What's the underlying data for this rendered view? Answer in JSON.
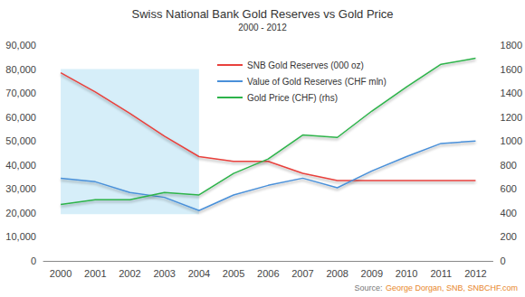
{
  "chart_data": {
    "type": "line",
    "title": "Swiss National Bank Gold Reserves vs Gold Price",
    "subtitle": "2000 - 2012",
    "categories": [
      "2000",
      "2001",
      "2002",
      "2003",
      "2004",
      "2005",
      "2006",
      "2007",
      "2008",
      "2009",
      "2010",
      "2011",
      "2012"
    ],
    "series": [
      {
        "name": "SNB Gold Reserves (000 oz)",
        "color": "#e8413c",
        "axis": "y",
        "values": [
          78500,
          70500,
          61500,
          52000,
          43500,
          41500,
          41500,
          36500,
          33500,
          33500,
          33500,
          33500,
          33500
        ]
      },
      {
        "name": "Value of Gold Reserves (CHF mln)",
        "color": "#4a90d9",
        "axis": "y",
        "values": [
          34500,
          33000,
          28500,
          26500,
          21000,
          27500,
          31500,
          34500,
          30500,
          37500,
          43500,
          49000,
          50000
        ]
      },
      {
        "name": "Gold Price (CHF) (rhs)",
        "color": "#2db34a",
        "axis": "y2",
        "values": [
          470,
          510,
          510,
          570,
          550,
          730,
          850,
          1050,
          1030,
          1250,
          1450,
          1640,
          1690
        ]
      }
    ],
    "ylim": [
      0,
      90000
    ],
    "yticks": [
      0,
      {
        "value": 10000,
        "label": "10,000"
      },
      {
        "value": 20000,
        "label": "20,000"
      },
      {
        "value": 30000,
        "label": "30,000"
      },
      {
        "value": 40000,
        "label": "40,000"
      },
      {
        "value": 50000,
        "label": "50,000"
      },
      {
        "value": 60000,
        "label": "60,000"
      },
      {
        "value": 70000,
        "label": "70,000"
      },
      {
        "value": 80000,
        "label": "80,000"
      },
      {
        "value": 90000,
        "label": "90,000"
      }
    ],
    "y2lim": [
      0,
      1800
    ],
    "y2ticks": [
      0,
      200,
      400,
      600,
      800,
      1000,
      1200,
      1400,
      1600,
      1800
    ],
    "shaded_region": {
      "from": "2000",
      "to": "2004",
      "ylim": [
        19500,
        80000
      ],
      "color": "#d6eef9"
    },
    "source_label": "Source:",
    "source": "George Dorgan, SNB, SNBCHF.com",
    "grid": false,
    "legend": "top"
  }
}
